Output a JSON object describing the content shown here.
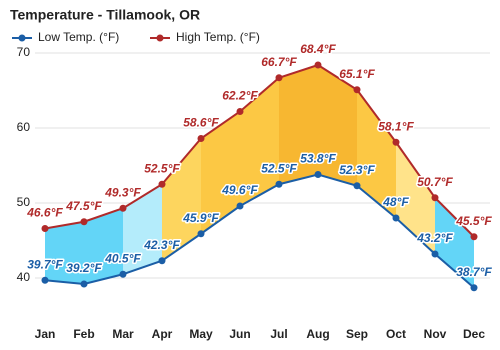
{
  "chart_data": {
    "type": "line",
    "title": "Temperature - Tillamook, OR",
    "categories": [
      "Jan",
      "Feb",
      "Mar",
      "Apr",
      "May",
      "Jun",
      "Jul",
      "Aug",
      "Sep",
      "Oct",
      "Nov",
      "Dec"
    ],
    "series": [
      {
        "name": "Low Temp. (°F)",
        "color": "#1b5ea6",
        "values": [
          39.7,
          39.2,
          40.5,
          42.3,
          45.9,
          49.6,
          52.5,
          53.8,
          52.3,
          48,
          43.2,
          38.7
        ],
        "value_labels": [
          "39.7°F",
          "39.2°F",
          "40.5°F",
          "42.3°F",
          "45.9°F",
          "49.6°F",
          "52.5°F",
          "53.8°F",
          "52.3°F",
          "48°F",
          "43.2°F",
          "38.7°F"
        ]
      },
      {
        "name": "High Temp. (°F)",
        "color": "#b02a2a",
        "values": [
          46.6,
          47.5,
          49.3,
          52.5,
          58.6,
          62.2,
          66.7,
          68.4,
          65.1,
          58.1,
          50.7,
          45.5
        ],
        "value_labels": [
          "46.6°F",
          "47.5°F",
          "49.3°F",
          "52.5°F",
          "58.6°F",
          "62.2°F",
          "66.7°F",
          "68.4°F",
          "65.1°F",
          "58.1°F",
          "50.7°F",
          "45.5°F"
        ]
      }
    ],
    "ylim": [
      35,
      72
    ],
    "yticks": [
      40,
      50,
      60,
      70
    ],
    "grid": true
  }
}
